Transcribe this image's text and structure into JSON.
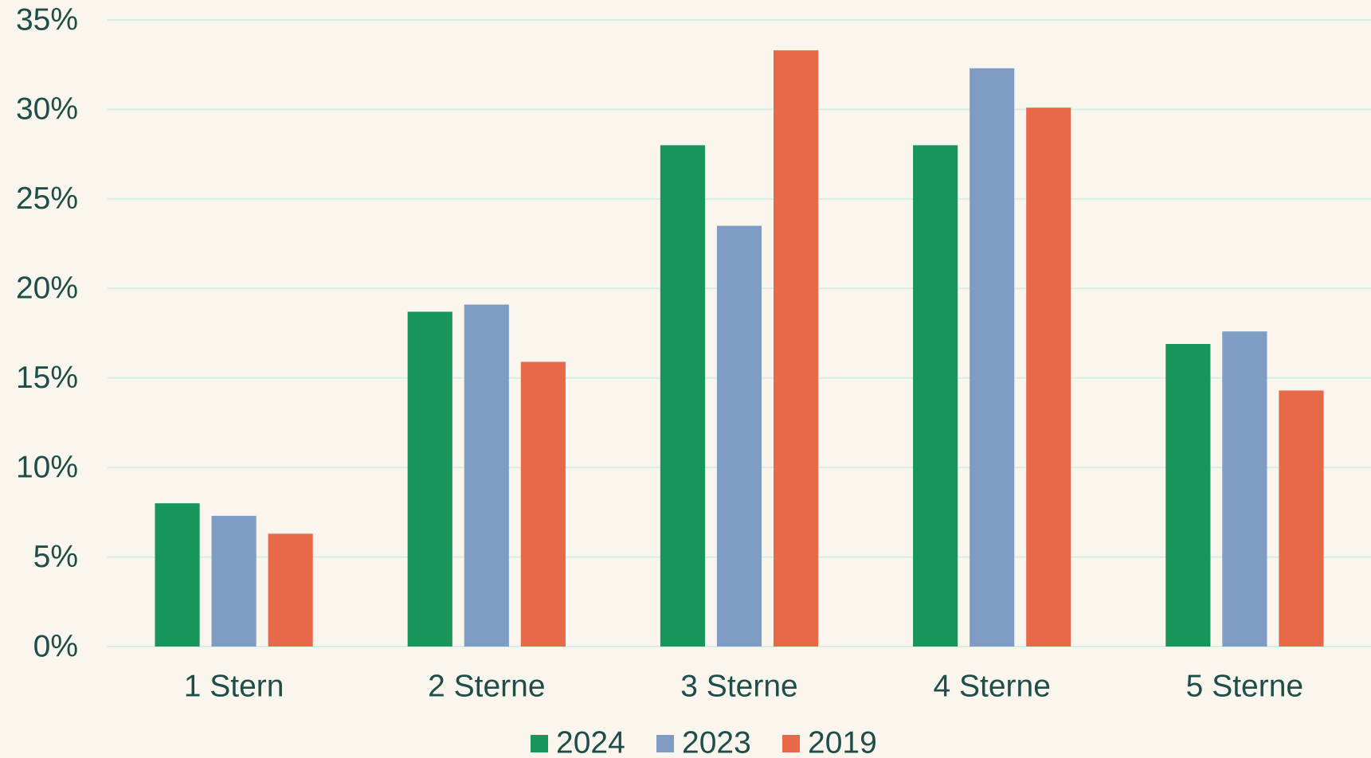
{
  "chart_data": {
    "type": "bar",
    "categories": [
      "1 Stern",
      "2 Sterne",
      "3 Sterne",
      "4 Sterne",
      "5 Sterne"
    ],
    "series": [
      {
        "name": "2024",
        "color": "#17955a",
        "values": [
          8.0,
          18.7,
          28.0,
          28.0,
          16.9
        ]
      },
      {
        "name": "2023",
        "color": "#7f9cc4",
        "values": [
          7.3,
          19.1,
          23.5,
          32.3,
          17.6
        ]
      },
      {
        "name": "2019",
        "color": "#e8694a",
        "values": [
          6.3,
          15.9,
          33.3,
          30.1,
          14.3
        ]
      }
    ],
    "ylim": [
      0,
      35
    ],
    "yticks": [
      {
        "value": 0,
        "label": "0%"
      },
      {
        "value": 5,
        "label": "5%"
      },
      {
        "value": 10,
        "label": "10%"
      },
      {
        "value": 15,
        "label": "15%"
      },
      {
        "value": 20,
        "label": "20%"
      },
      {
        "value": 25,
        "label": "25%"
      },
      {
        "value": 30,
        "label": "30%"
      },
      {
        "value": 35,
        "label": "35%"
      }
    ],
    "grid": true,
    "legend": "bottom"
  }
}
